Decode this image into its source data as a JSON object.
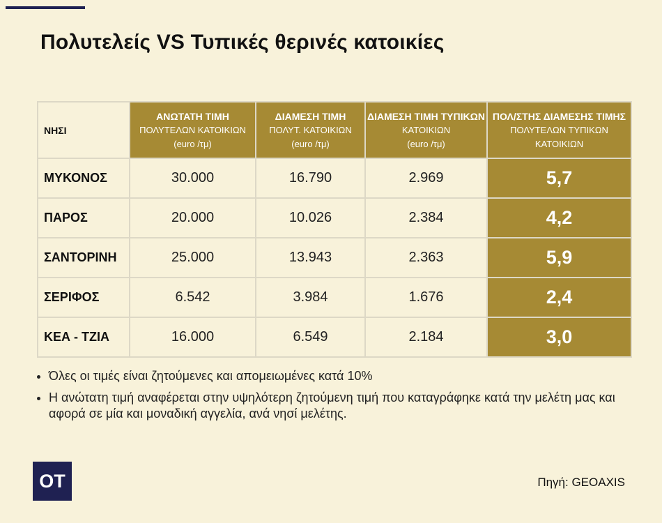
{
  "header": {
    "title": "Πολυτελείς VS Τυπικές θερινές κατοικίες"
  },
  "table": {
    "columns": [
      [
        "ΝΗΣΙ"
      ],
      [
        "ΑΝΩΤΑΤΗ ΤΙΜΗ",
        "ΠΟΛΥΤΕΛΩΝ ΚΑΤΟΙΚΙΩΝ",
        "(euro /τμ)"
      ],
      [
        "ΔΙΑΜΕΣΗ ΤΙΜΗ",
        "ΠΟΛΥΤ.  ΚΑΤΟΙΚΙΩΝ",
        "(euro /τμ)"
      ],
      [
        "ΔΙΑΜΕΣΗ ΤΙΜΗ ΤΥΠΙΚΩΝ",
        "ΚΑΤΟΙΚΙΩΝ",
        "(euro /τμ)"
      ],
      [
        "ΠΟΛ/ΣΤΗΣ ΔΙΑΜΕΣΗΣ ΤΙΜΗΣ",
        "ΠΟΛΥΤΕΛΩΝ ΤΥΠΙΚΩΝ",
        "ΚΑΤΟΙΚΙΩΝ"
      ]
    ],
    "rows": [
      [
        "ΜΥΚΟΝΟΣ",
        "30.000",
        "16.790",
        "2.969",
        "5,7"
      ],
      [
        "ΠΑΡΟΣ",
        "20.000",
        "10.026",
        "2.384",
        "4,2"
      ],
      [
        "ΣΑΝΤΟΡΙΝΗ",
        "25.000",
        "13.943",
        "2.363",
        "5,9"
      ],
      [
        "ΣΕΡΙΦΟΣ",
        "6.542",
        "3.984",
        "1.676",
        "2,4"
      ],
      [
        "ΚΕΑ - ΤΖΙΑ",
        "16.000",
        "6.549",
        "2.184",
        "3,0"
      ]
    ]
  },
  "notes": [
    "Όλες οι τιμές είναι ζητούμενες και απομειωμένες κατά 10%",
    "Η ανώτατη τιμή αναφέρεται στην υψηλότερη ζητούμενη τιμή που καταγράφηκε κατά την μελέτη μας και αφορά σε μία και μοναδική αγγελία, ανά νησί μελέτης."
  ],
  "footer": {
    "logo": "OT",
    "source": "Πηγή: GEOAXIS"
  }
}
